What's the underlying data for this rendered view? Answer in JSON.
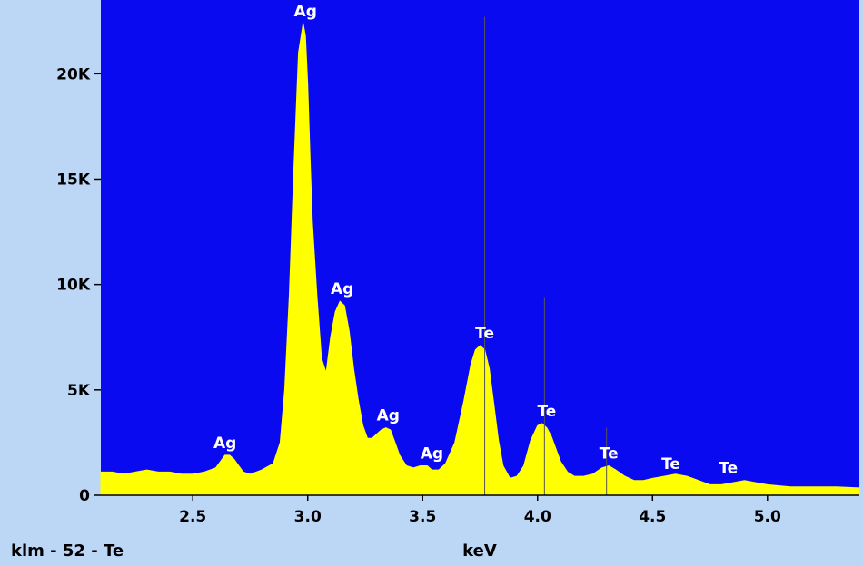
{
  "chart_data": {
    "type": "area",
    "sample_label": "klm - 52 - Te",
    "xlabel": "keV",
    "ylabel": "",
    "xlim": [
      2.1,
      5.4
    ],
    "ylim": [
      0,
      23500
    ],
    "x_ticks": [
      2.5,
      3.0,
      3.5,
      4.0,
      4.5,
      5.0
    ],
    "x_tick_labels": [
      "2.5",
      "3.0",
      "3.5",
      "4.0",
      "4.5",
      "5.0"
    ],
    "y_ticks": [
      0,
      5000,
      10000,
      15000,
      20000
    ],
    "y_tick_labels": [
      "0",
      "5K",
      "10K",
      "15K",
      "20K"
    ],
    "grid": false,
    "colors": {
      "plot_background": "#0a0af0",
      "spectrum": "#ffff00",
      "page_background": "#bcd6f6",
      "marker_line": "#555555"
    },
    "series": [
      {
        "name": "",
        "x": [
          2.1,
          2.15,
          2.2,
          2.25,
          2.3,
          2.35,
          2.4,
          2.45,
          2.5,
          2.55,
          2.6,
          2.62,
          2.64,
          2.66,
          2.68,
          2.7,
          2.72,
          2.75,
          2.8,
          2.85,
          2.88,
          2.9,
          2.92,
          2.94,
          2.96,
          2.98,
          2.99,
          3.0,
          3.01,
          3.02,
          3.04,
          3.06,
          3.08,
          3.1,
          3.12,
          3.14,
          3.16,
          3.18,
          3.2,
          3.22,
          3.24,
          3.26,
          3.28,
          3.3,
          3.32,
          3.34,
          3.36,
          3.38,
          3.4,
          3.43,
          3.46,
          3.49,
          3.52,
          3.54,
          3.57,
          3.6,
          3.64,
          3.68,
          3.71,
          3.73,
          3.75,
          3.77,
          3.79,
          3.81,
          3.83,
          3.85,
          3.88,
          3.91,
          3.94,
          3.97,
          4.0,
          4.02,
          4.04,
          4.06,
          4.08,
          4.1,
          4.13,
          4.16,
          4.2,
          4.24,
          4.28,
          4.31,
          4.34,
          4.38,
          4.42,
          4.46,
          4.5,
          4.55,
          4.6,
          4.65,
          4.7,
          4.75,
          4.8,
          4.85,
          4.9,
          4.95,
          5.0,
          5.1,
          5.2,
          5.3,
          5.4
        ],
        "values": [
          1100,
          1100,
          1000,
          1100,
          1200,
          1100,
          1100,
          1000,
          1000,
          1100,
          1300,
          1600,
          1900,
          1900,
          1700,
          1400,
          1100,
          1000,
          1200,
          1500,
          2500,
          5000,
          9500,
          15500,
          21000,
          22400,
          21800,
          19500,
          16000,
          13000,
          9500,
          6500,
          5800,
          7500,
          8700,
          9200,
          9000,
          7800,
          6000,
          4500,
          3300,
          2700,
          2700,
          2900,
          3100,
          3200,
          3100,
          2500,
          1900,
          1400,
          1300,
          1400,
          1400,
          1200,
          1200,
          1500,
          2500,
          4500,
          6200,
          6900,
          7100,
          6900,
          6000,
          4300,
          2600,
          1400,
          800,
          900,
          1400,
          2600,
          3300,
          3400,
          3200,
          2800,
          2200,
          1600,
          1100,
          900,
          900,
          1000,
          1300,
          1400,
          1200,
          900,
          700,
          700,
          800,
          900,
          1000,
          900,
          700,
          500,
          500,
          600,
          700,
          600,
          500,
          400,
          400,
          400,
          350
        ]
      }
    ],
    "marker_lines": [
      {
        "x": 3.77,
        "value": 22700
      },
      {
        "x": 4.03,
        "value": 9400
      },
      {
        "x": 4.3,
        "value": 3200
      }
    ],
    "annotations": [
      {
        "text": "Ag",
        "x": 2.99,
        "y": 22400
      },
      {
        "text": "Ag",
        "x": 3.15,
        "y": 9200
      },
      {
        "text": "Ag",
        "x": 3.35,
        "y": 3200
      },
      {
        "text": "Ag",
        "x": 2.64,
        "y": 1900
      },
      {
        "text": "Ag",
        "x": 3.54,
        "y": 1400
      },
      {
        "text": "Te",
        "x": 3.77,
        "y": 7100
      },
      {
        "text": "Te",
        "x": 4.04,
        "y": 3400
      },
      {
        "text": "Te",
        "x": 4.31,
        "y": 1400
      },
      {
        "text": "Te",
        "x": 4.58,
        "y": 900
      },
      {
        "text": "Te",
        "x": 4.83,
        "y": 700
      }
    ]
  }
}
